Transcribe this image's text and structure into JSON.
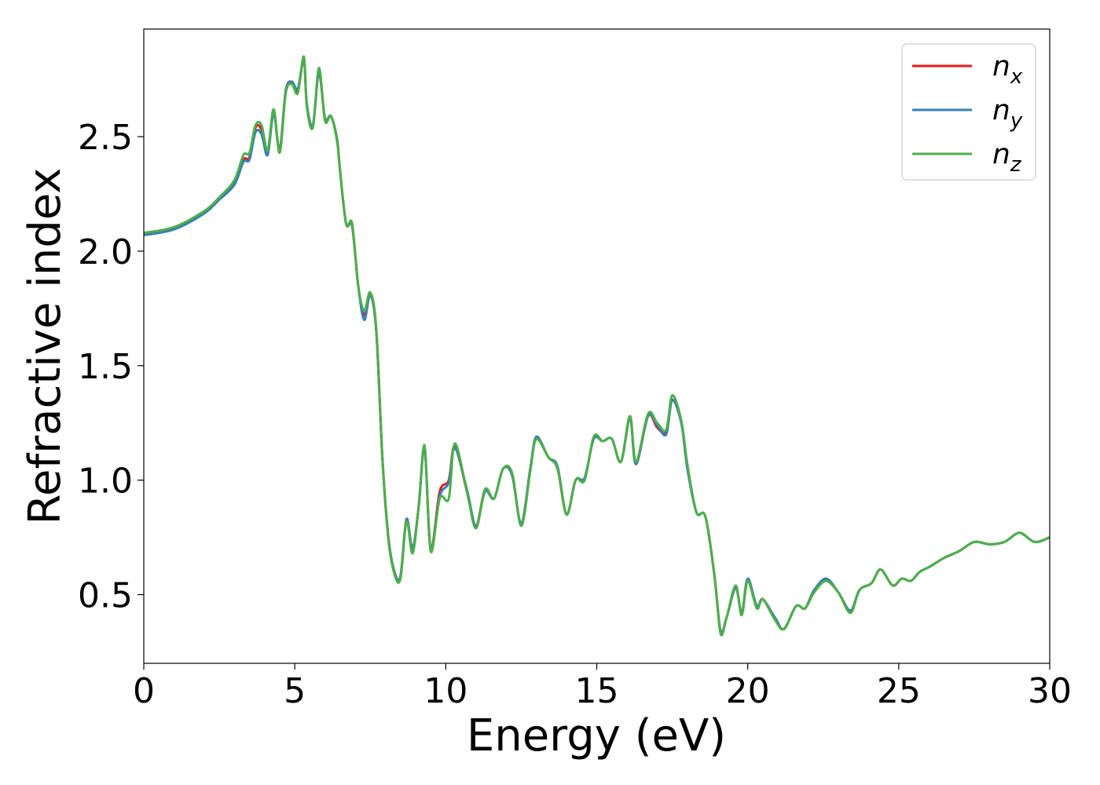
{
  "chart_data": {
    "type": "line",
    "title": "",
    "xlabel": "Energy (eV)",
    "ylabel": "Refractive index",
    "xlim": [
      0,
      30
    ],
    "ylim": [
      0.2,
      2.97
    ],
    "xticks": [
      0,
      5,
      10,
      15,
      20,
      25,
      30
    ],
    "xtick_labels": [
      "0",
      "5",
      "10",
      "15",
      "20",
      "25",
      "30"
    ],
    "yticks": [
      0.5,
      1.0,
      1.5,
      2.0,
      2.5
    ],
    "ytick_labels": [
      "0.5",
      "1.0",
      "1.5",
      "2.0",
      "2.5"
    ],
    "grid": false,
    "legend_position": "top-right",
    "series": [
      {
        "name": "n_x",
        "label_base": "n",
        "label_sub": "x",
        "color": "#e41a1c",
        "x": [
          0,
          1,
          2,
          2.5,
          3,
          3.3,
          3.5,
          3.7,
          3.9,
          4.1,
          4.3,
          4.5,
          4.7,
          4.9,
          5.1,
          5.3,
          5.4,
          5.6,
          5.8,
          6.0,
          6.2,
          6.4,
          6.5,
          6.7,
          6.9,
          7.1,
          7.3,
          7.5,
          7.7,
          7.9,
          8.1,
          8.3,
          8.5,
          8.7,
          8.9,
          9.1,
          9.3,
          9.5,
          9.8,
          10.1,
          10.3,
          10.7,
          11.0,
          11.3,
          11.6,
          11.9,
          12.2,
          12.5,
          12.8,
          13.0,
          13.4,
          13.7,
          14.0,
          14.3,
          14.6,
          14.9,
          15.2,
          15.5,
          15.8,
          16.1,
          16.3,
          16.7,
          17.0,
          17.3,
          17.5,
          17.8,
          18.0,
          18.3,
          18.6,
          18.9,
          19.1,
          19.3,
          19.6,
          19.8,
          20.0,
          20.3,
          20.5,
          20.9,
          21.2,
          21.6,
          21.9,
          22.2,
          22.6,
          23.0,
          23.4,
          23.7,
          24.1,
          24.4,
          24.8,
          25.1,
          25.4,
          25.7,
          26.0,
          26.5,
          27.0,
          27.5,
          28.0,
          28.5,
          29.0,
          29.5,
          30.0
        ],
        "y": [
          2.075,
          2.1,
          2.17,
          2.23,
          2.3,
          2.4,
          2.41,
          2.54,
          2.53,
          2.43,
          2.61,
          2.44,
          2.7,
          2.74,
          2.7,
          2.84,
          2.64,
          2.55,
          2.78,
          2.58,
          2.59,
          2.49,
          2.35,
          2.12,
          2.11,
          1.85,
          1.72,
          1.81,
          1.65,
          1.1,
          0.75,
          0.6,
          0.58,
          0.83,
          0.7,
          0.88,
          1.14,
          0.7,
          0.95,
          1.0,
          1.15,
          0.95,
          0.8,
          0.96,
          0.92,
          1.05,
          1.02,
          0.81,
          1.05,
          1.18,
          1.1,
          1.05,
          0.85,
          1.0,
          1.01,
          1.18,
          1.17,
          1.18,
          1.08,
          1.27,
          1.07,
          1.28,
          1.23,
          1.21,
          1.35,
          1.25,
          1.06,
          0.86,
          0.84,
          0.58,
          0.34,
          0.4,
          0.53,
          0.42,
          0.56,
          0.45,
          0.48,
          0.4,
          0.35,
          0.45,
          0.44,
          0.52,
          0.56,
          0.51,
          0.43,
          0.52,
          0.55,
          0.61,
          0.54,
          0.57,
          0.56,
          0.6,
          0.62,
          0.66,
          0.69,
          0.73,
          0.72,
          0.73,
          0.77,
          0.73,
          0.75
        ]
      },
      {
        "name": "n_y",
        "label_base": "n",
        "label_sub": "y",
        "color": "#377eb8",
        "x": [
          0,
          1,
          2,
          2.5,
          3,
          3.3,
          3.5,
          3.7,
          3.9,
          4.1,
          4.3,
          4.5,
          4.7,
          4.9,
          5.1,
          5.3,
          5.4,
          5.6,
          5.8,
          6.0,
          6.2,
          6.4,
          6.5,
          6.7,
          6.9,
          7.1,
          7.3,
          7.5,
          7.7,
          7.9,
          8.1,
          8.3,
          8.5,
          8.7,
          8.9,
          9.1,
          9.3,
          9.5,
          9.8,
          10.1,
          10.3,
          10.7,
          11.0,
          11.3,
          11.6,
          11.9,
          12.2,
          12.5,
          12.8,
          13.0,
          13.4,
          13.7,
          14.0,
          14.3,
          14.6,
          14.9,
          15.2,
          15.5,
          15.8,
          16.1,
          16.3,
          16.7,
          17.0,
          17.3,
          17.5,
          17.8,
          18.0,
          18.3,
          18.6,
          18.9,
          19.1,
          19.3,
          19.6,
          19.8,
          20.0,
          20.3,
          20.5,
          20.9,
          21.2,
          21.6,
          21.9,
          22.2,
          22.6,
          23.0,
          23.4,
          23.7,
          24.1,
          24.4,
          24.8,
          25.1,
          25.4,
          25.7,
          26.0,
          26.5,
          27.0,
          27.5,
          28.0,
          28.5,
          29.0,
          29.5,
          30.0
        ],
        "y": [
          2.07,
          2.095,
          2.165,
          2.225,
          2.29,
          2.39,
          2.4,
          2.52,
          2.51,
          2.42,
          2.6,
          2.44,
          2.7,
          2.74,
          2.71,
          2.84,
          2.64,
          2.55,
          2.78,
          2.58,
          2.59,
          2.49,
          2.35,
          2.12,
          2.11,
          1.85,
          1.7,
          1.81,
          1.65,
          1.1,
          0.75,
          0.6,
          0.58,
          0.83,
          0.7,
          0.88,
          1.14,
          0.7,
          0.93,
          0.99,
          1.14,
          0.96,
          0.8,
          0.95,
          0.92,
          1.05,
          1.02,
          0.81,
          1.05,
          1.19,
          1.1,
          1.06,
          0.85,
          1.0,
          1.01,
          1.18,
          1.17,
          1.18,
          1.08,
          1.27,
          1.07,
          1.28,
          1.24,
          1.2,
          1.35,
          1.25,
          1.05,
          0.86,
          0.84,
          0.58,
          0.34,
          0.4,
          0.53,
          0.42,
          0.57,
          0.45,
          0.48,
          0.4,
          0.35,
          0.45,
          0.44,
          0.52,
          0.57,
          0.51,
          0.43,
          0.52,
          0.55,
          0.61,
          0.54,
          0.57,
          0.56,
          0.6,
          0.62,
          0.66,
          0.69,
          0.73,
          0.72,
          0.73,
          0.77,
          0.73,
          0.75
        ]
      },
      {
        "name": "n_z",
        "label_base": "n",
        "label_sub": "z",
        "color": "#4daf4a",
        "x": [
          0,
          1,
          2,
          2.5,
          3,
          3.3,
          3.5,
          3.7,
          3.9,
          4.1,
          4.3,
          4.5,
          4.7,
          4.9,
          5.1,
          5.3,
          5.4,
          5.6,
          5.8,
          6.0,
          6.2,
          6.4,
          6.5,
          6.7,
          6.9,
          7.1,
          7.3,
          7.5,
          7.7,
          7.9,
          8.1,
          8.3,
          8.5,
          8.7,
          8.9,
          9.1,
          9.3,
          9.5,
          9.8,
          10.1,
          10.3,
          10.7,
          11.0,
          11.3,
          11.6,
          11.9,
          12.2,
          12.5,
          12.8,
          13.0,
          13.4,
          13.7,
          14.0,
          14.3,
          14.6,
          14.9,
          15.2,
          15.5,
          15.8,
          16.1,
          16.3,
          16.7,
          17.0,
          17.3,
          17.5,
          17.8,
          18.0,
          18.3,
          18.6,
          18.9,
          19.1,
          19.3,
          19.6,
          19.8,
          20.0,
          20.3,
          20.5,
          20.9,
          21.2,
          21.6,
          21.9,
          22.2,
          22.6,
          23.0,
          23.4,
          23.7,
          24.1,
          24.4,
          24.8,
          25.1,
          25.4,
          25.7,
          26.0,
          26.5,
          27.0,
          27.5,
          28.0,
          28.5,
          29.0,
          29.5,
          30.0
        ],
        "y": [
          2.08,
          2.105,
          2.175,
          2.235,
          2.31,
          2.42,
          2.43,
          2.55,
          2.55,
          2.44,
          2.62,
          2.43,
          2.69,
          2.73,
          2.69,
          2.85,
          2.63,
          2.54,
          2.8,
          2.57,
          2.59,
          2.48,
          2.35,
          2.12,
          2.12,
          1.85,
          1.74,
          1.82,
          1.66,
          1.1,
          0.74,
          0.59,
          0.57,
          0.82,
          0.68,
          0.88,
          1.15,
          0.69,
          0.92,
          0.92,
          1.16,
          0.95,
          0.79,
          0.96,
          0.92,
          1.05,
          1.03,
          0.8,
          1.04,
          1.18,
          1.1,
          1.05,
          0.85,
          1.0,
          1.0,
          1.19,
          1.17,
          1.18,
          1.08,
          1.28,
          1.08,
          1.29,
          1.25,
          1.22,
          1.37,
          1.26,
          1.07,
          0.86,
          0.84,
          0.58,
          0.33,
          0.4,
          0.54,
          0.41,
          0.56,
          0.44,
          0.48,
          0.39,
          0.35,
          0.45,
          0.44,
          0.51,
          0.56,
          0.51,
          0.42,
          0.52,
          0.55,
          0.61,
          0.54,
          0.57,
          0.56,
          0.6,
          0.62,
          0.66,
          0.69,
          0.73,
          0.72,
          0.73,
          0.77,
          0.73,
          0.75
        ]
      }
    ]
  }
}
